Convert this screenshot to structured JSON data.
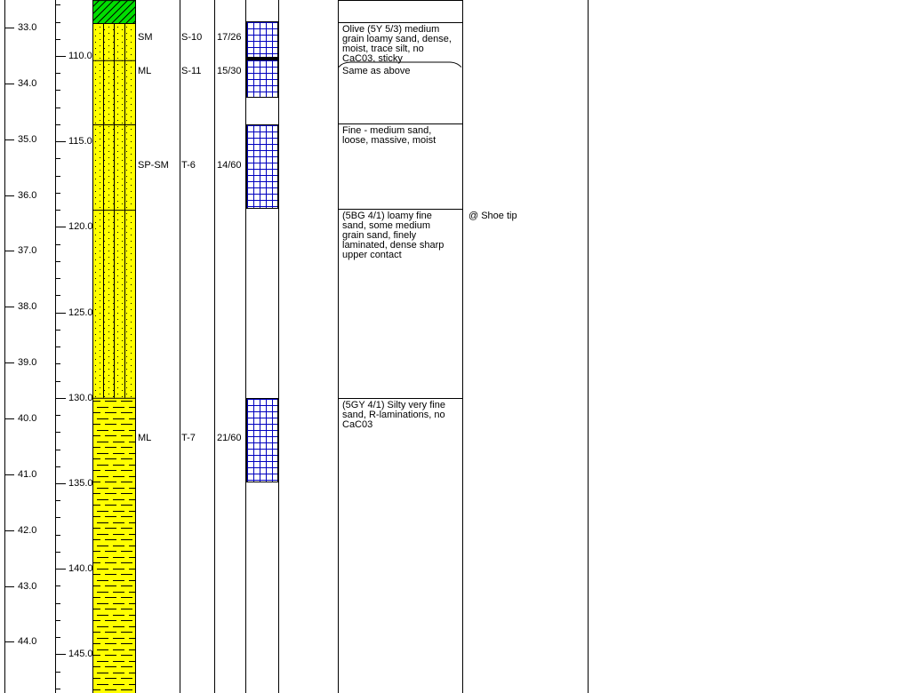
{
  "title": "Boring log strip (partial page)",
  "colors": {
    "background": "#ffffff",
    "line": "#000000",
    "sand_fill_yellow": "#ffff00",
    "hatch_fill_green": "#00de00",
    "recovery_grid_blue": "#0000bf"
  },
  "depth_scale_m": {
    "unit": "meters",
    "labels": [
      "33.0",
      "34.0",
      "35.0",
      "36.0",
      "37.0",
      "38.0",
      "39.0",
      "40.0",
      "41.0",
      "42.0",
      "43.0",
      "44.0"
    ]
  },
  "depth_scale_ft": {
    "unit": "feet",
    "major_labels": [
      "110.0",
      "115.0",
      "120.0",
      "125.0",
      "130.0",
      "135.0",
      "140.0",
      "145.0"
    ],
    "minor_tick_start_ft": 107,
    "minor_tick_end_ft": 147
  },
  "lithology": {
    "column_icon": "lithology-pattern-column",
    "segments": [
      {
        "pattern": "diagonal-hatch",
        "color": "#00de00",
        "top_ft": 106.73,
        "bottom_ft": 108.08
      },
      {
        "pattern": "dots",
        "color": "#ffff00",
        "top_ft": 108.08,
        "bottom_ft": 110.25
      },
      {
        "pattern": "dots",
        "color": "#ffff00",
        "top_ft": 110.25,
        "bottom_ft": 114.0
      },
      {
        "pattern": "dots",
        "color": "#ffff00",
        "top_ft": 114.0,
        "bottom_ft": 119.0
      },
      {
        "pattern": "dots",
        "color": "#ffff00",
        "top_ft": 119.0,
        "bottom_ft": 130.0
      },
      {
        "pattern": "dashes",
        "color": "#ffff00",
        "top_ft": 130.0,
        "bottom_ft": 147.3
      }
    ]
  },
  "samples": [
    {
      "uscs": "SM",
      "id": "S-10",
      "blows": "17/26",
      "label_ft": 108.92,
      "bar_top_ft": 107.97,
      "bar_bottom_ft": 110.1
    },
    {
      "uscs": "ML",
      "id": "S-11",
      "blows": "15/30",
      "label_ft": 110.88,
      "bar_top_ft": 110.21,
      "bar_bottom_ft": 112.44
    },
    {
      "uscs": "SP-SM",
      "id": "T-6",
      "blows": "14/60",
      "label_ft": 116.39,
      "bar_top_ft": 114.0,
      "bar_bottom_ft": 118.94
    },
    {
      "uscs": "ML",
      "id": "T-7",
      "blows": "21/60",
      "label_ft": 132.35,
      "bar_top_ft": 130.0,
      "bar_bottom_ft": 134.94
    }
  ],
  "bar_divider": {
    "top_ft": 110.12,
    "bottom_ft": 110.28
  },
  "descriptions": [
    {
      "text": "Olive (5Y 5/3) medium grain loamy sand, dense, moist, trace silt, no CaC03, sticky",
      "top_ft": 108.03,
      "bottom_ft": 110.47,
      "top_boundary": "line"
    },
    {
      "text": "Same as above",
      "top_ft": 110.47,
      "bottom_ft": 113.95,
      "top_boundary": "curved"
    },
    {
      "text": "Fine - medium sand, loose, massive, moist",
      "top_ft": 113.95,
      "bottom_ft": 118.94,
      "top_boundary": "line"
    },
    {
      "text": "(5BG 4/1) loamy fine sand, some medium grain sand, finely laminated, dense sharp upper contact",
      "top_ft": 118.94,
      "bottom_ft": 130.0,
      "top_boundary": "line"
    },
    {
      "text": "(5GY 4/1) Silty very fine sand, R-laminations, no CaC03",
      "top_ft": 130.0,
      "bottom_ft": 147.3,
      "top_boundary": "line"
    }
  ],
  "remarks": [
    {
      "text": "@ Shoe tip",
      "ft": 119.36
    }
  ]
}
